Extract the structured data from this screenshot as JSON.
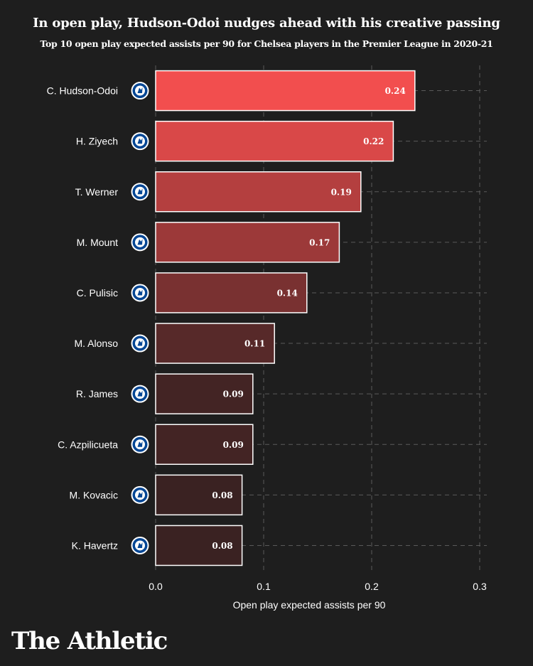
{
  "header": {
    "title": "In open play, Hudson-Odoi nudges ahead with his creative passing",
    "subtitle": "Top 10 open play expected assists per 90 for Chelsea players in the Premier League in 2020-21"
  },
  "brand": {
    "logo_text": "The Athletic"
  },
  "chart_data": {
    "type": "bar",
    "orientation": "horizontal",
    "categories": [
      "C. Hudson-Odoi",
      "H. Ziyech",
      "T. Werner",
      "M. Mount",
      "C. Pulisic",
      "M. Alonso",
      "R. James",
      "C. Azpilicueta",
      "M. Kovacic",
      "K. Havertz"
    ],
    "values": [
      0.24,
      0.22,
      0.19,
      0.17,
      0.14,
      0.11,
      0.09,
      0.09,
      0.08,
      0.08
    ],
    "value_labels": [
      "0.24",
      "0.22",
      "0.19",
      "0.17",
      "0.14",
      "0.11",
      "0.09",
      "0.09",
      "0.08",
      "0.08"
    ],
    "xlabel": "Open play expected assists per 90",
    "xlim": [
      0,
      0.3
    ],
    "xticks": [
      0.0,
      0.1,
      0.2,
      0.3
    ],
    "xtick_labels": [
      "0.0",
      "0.1",
      "0.2",
      "0.3"
    ],
    "grid": "dashed vertical and horizontal",
    "colors": {
      "background": "#1e1e1e",
      "bar_high": "#f24e4e",
      "bar_low": "#3a2222",
      "bar_border": "#ffffff",
      "grid": "#5a5a5a",
      "text": "#ffffff",
      "badge_fill": "#034694",
      "badge_ring": "#ffffff"
    },
    "icon": "chelsea-badge-icon"
  }
}
